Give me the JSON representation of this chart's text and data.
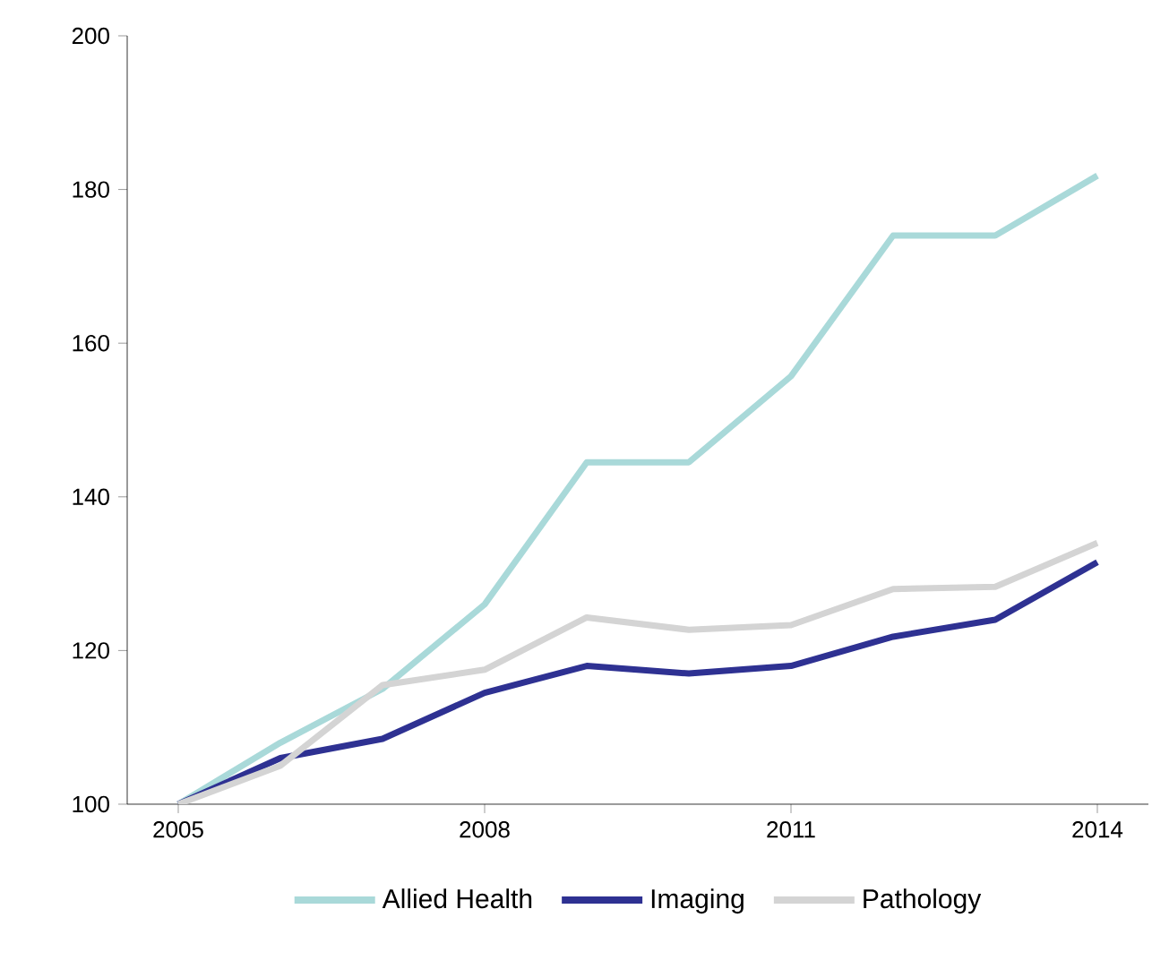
{
  "chart_data": {
    "type": "line",
    "x": [
      2005,
      2006,
      2007,
      2008,
      2009,
      2010,
      2011,
      2012,
      2013,
      2014
    ],
    "series": [
      {
        "name": "Allied Health",
        "color": "#a9d9d9",
        "values": [
          100,
          108,
          115,
          126,
          144.5,
          144.5,
          155.7,
          174,
          174,
          181.8
        ]
      },
      {
        "name": "Imaging",
        "color": "#2e3192",
        "values": [
          100,
          106,
          108.5,
          114.5,
          118,
          117,
          118,
          121.8,
          124,
          131.5
        ]
      },
      {
        "name": "Pathology",
        "color": "#d4d4d4",
        "values": [
          100,
          105,
          115.5,
          117.5,
          124.3,
          122.7,
          123.3,
          128,
          128.3,
          134
        ]
      }
    ],
    "xlim": [
      2004.5,
      2014.5
    ],
    "ylim": [
      100,
      200
    ],
    "xticks": [
      2005,
      2008,
      2011,
      2014
    ],
    "yticks": [
      100,
      120,
      140,
      160,
      180,
      200
    ],
    "grid": false,
    "legend": "bottom",
    "marker": "none",
    "line_style": "solid"
  }
}
